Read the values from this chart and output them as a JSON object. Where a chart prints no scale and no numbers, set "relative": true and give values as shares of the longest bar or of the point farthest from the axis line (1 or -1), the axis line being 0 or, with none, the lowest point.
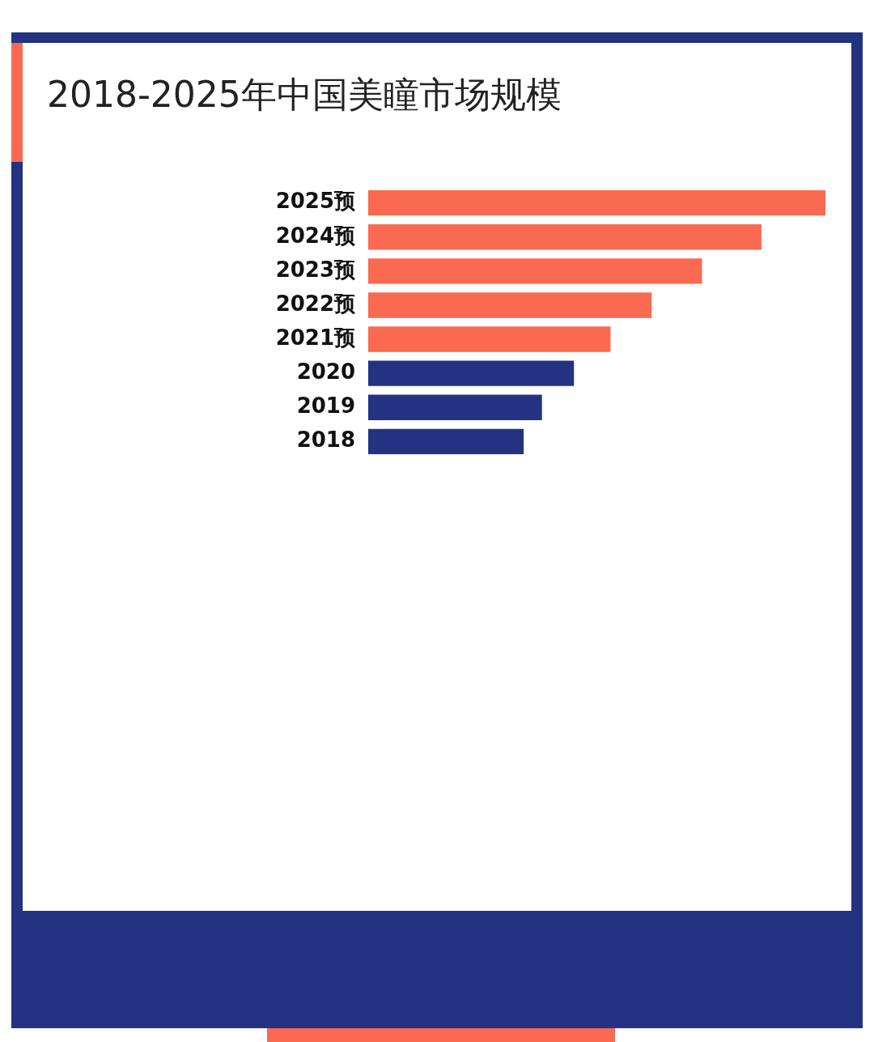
{
  "chart_data": {
    "type": "bar",
    "title": "2018-2025年中国美瞳市场规模",
    "orientation": "horizontal",
    "categories": [
      "2025预",
      "2024预",
      "2023预",
      "2022预",
      "2021预",
      "2020",
      "2019",
      "2018"
    ],
    "values": [
      1,
      0.86,
      0.73,
      0.62,
      0.53,
      0.45,
      0.38,
      0.34
    ],
    "colors": [
      "#f96a51",
      "#f96a51",
      "#f96a51",
      "#f96a51",
      "#f96a51",
      "#233382",
      "#233382",
      "#233382"
    ],
    "relative": true
  }
}
